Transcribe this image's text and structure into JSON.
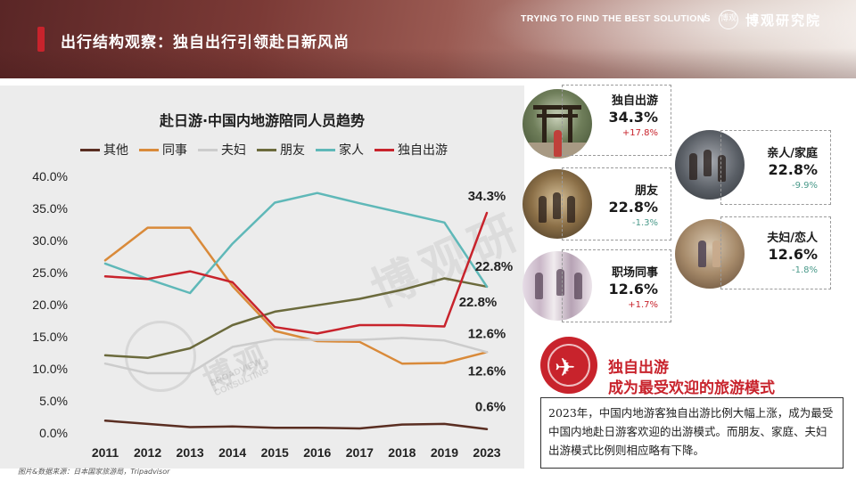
{
  "header": {
    "title": "出行结构观察：独自出行引领赴日新风尚",
    "tagline": "TRYING TO FIND THE BEST SOLUTIONS",
    "separator": "/",
    "brand": "博观研究院",
    "logo_text": "博观"
  },
  "chart_data": {
    "type": "line",
    "title": "赴日游·中国内地游陪同人员趋势",
    "x": [
      "2011",
      "2012",
      "2013",
      "2014",
      "2015",
      "2016",
      "2017",
      "2018",
      "2019",
      "2023"
    ],
    "y_ticks": [
      "40.0%",
      "35.0%",
      "30.0%",
      "25.0%",
      "20.0%",
      "15.0%",
      "10.0%",
      "5.0%",
      "0.0%"
    ],
    "ylim": [
      0,
      40
    ],
    "grid": false,
    "legend_position": "top",
    "series": [
      {
        "name": "其他",
        "color": "#5a2e22",
        "values": [
          1.9,
          1.4,
          0.9,
          1.0,
          0.8,
          0.8,
          0.7,
          1.3,
          1.4,
          0.6
        ]
      },
      {
        "name": "同事",
        "color": "#d98a3a",
        "values": [
          26.9,
          32.0,
          32.0,
          22.9,
          15.9,
          14.3,
          14.2,
          10.8,
          10.9,
          12.6
        ]
      },
      {
        "name": "夫妇",
        "color": "#cccccc",
        "values": [
          10.8,
          9.3,
          9.3,
          13.4,
          14.6,
          14.5,
          14.5,
          14.8,
          14.4,
          12.6
        ]
      },
      {
        "name": "朋友",
        "color": "#6b6a3c",
        "values": [
          12.1,
          11.7,
          13.2,
          16.8,
          18.9,
          19.9,
          20.9,
          22.3,
          24.1,
          22.8
        ]
      },
      {
        "name": "家人",
        "color": "#5fb8b8",
        "values": [
          26.4,
          24.0,
          21.8,
          29.5,
          35.9,
          37.4,
          35.8,
          34.3,
          32.8,
          22.8
        ]
      },
      {
        "name": "独自出游",
        "color": "#c8232c",
        "values": [
          24.4,
          24.0,
          25.2,
          23.5,
          16.5,
          15.5,
          16.8,
          16.8,
          16.6,
          34.3
        ]
      }
    ],
    "annotations": [
      {
        "text": "34.3%",
        "x": "2023",
        "y": 34.3
      },
      {
        "text": "22.8%",
        "x": "2023",
        "y": 22.8
      },
      {
        "text": "22.8%",
        "x": "2023",
        "y": 22.8
      },
      {
        "text": "12.6%",
        "x": "2023",
        "y": 12.6
      },
      {
        "text": "12.6%",
        "x": "2023",
        "y": 12.6
      },
      {
        "text": "0.6%",
        "x": "2023",
        "y": 0.6
      }
    ]
  },
  "watermark": {
    "main": "博观",
    "big": "博观研",
    "sub1": "BROADVIEW",
    "sub2": "CONSULTING"
  },
  "source": "图片&数据来源：日本国家旅游局，Tripadvisor",
  "cards": {
    "solo": {
      "label": "独自出游",
      "value": "34.3%",
      "change": "+17.8%"
    },
    "friends": {
      "label": "朋友",
      "value": "22.8%",
      "change": "-1.3%"
    },
    "office": {
      "label": "职场同事",
      "value": "12.6%",
      "change": "+1.7%"
    },
    "family": {
      "label": "亲人/家庭",
      "value": "22.8%",
      "change": "-9.9%"
    },
    "couple": {
      "label": "夫妇/恋人",
      "value": "12.6%",
      "change": "-1.8%"
    }
  },
  "highlight": {
    "title_line1": "独自出游",
    "title_line2": "成为最受欢迎的旅游模式",
    "body": "2023年，中国内地游客独自出游比例大幅上涨，成为最受中国内地赴日游客欢迎的出游模式。而朋友、家庭、夫妇出游模式比例则相应略有下降。",
    "plane_icon": "✈"
  }
}
